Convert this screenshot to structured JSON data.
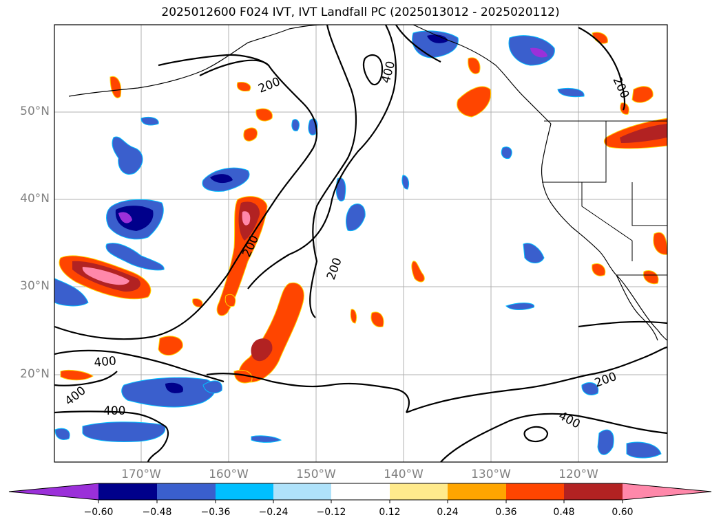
{
  "title": "2025012600 F024 IVT, IVT Landfall PC (2025013012 - 2025020112)",
  "map": {
    "lat_labels": [
      "50°N",
      "40°N",
      "30°N",
      "20°N"
    ],
    "lon_labels": [
      "170°W",
      "160°W",
      "150°W",
      "140°W",
      "130°W",
      "120°W"
    ],
    "contour_labels": [
      "200",
      "400",
      "200",
      "200",
      "400",
      "400",
      "400",
      "200",
      "400",
      "200"
    ]
  },
  "colorbar": {
    "colors": [
      "#9b30d9",
      "#00008b",
      "#3a5fcd",
      "#00bfff",
      "#afe2fa",
      "#ffffff",
      "#ffea8c",
      "#ffa500",
      "#ff4500",
      "#b22222",
      "#ff88aa"
    ],
    "tick_labels": [
      "−0.60",
      "−0.48",
      "−0.36",
      "−0.24",
      "−0.12",
      "0.12",
      "0.24",
      "0.36",
      "0.48",
      "0.60"
    ]
  }
}
